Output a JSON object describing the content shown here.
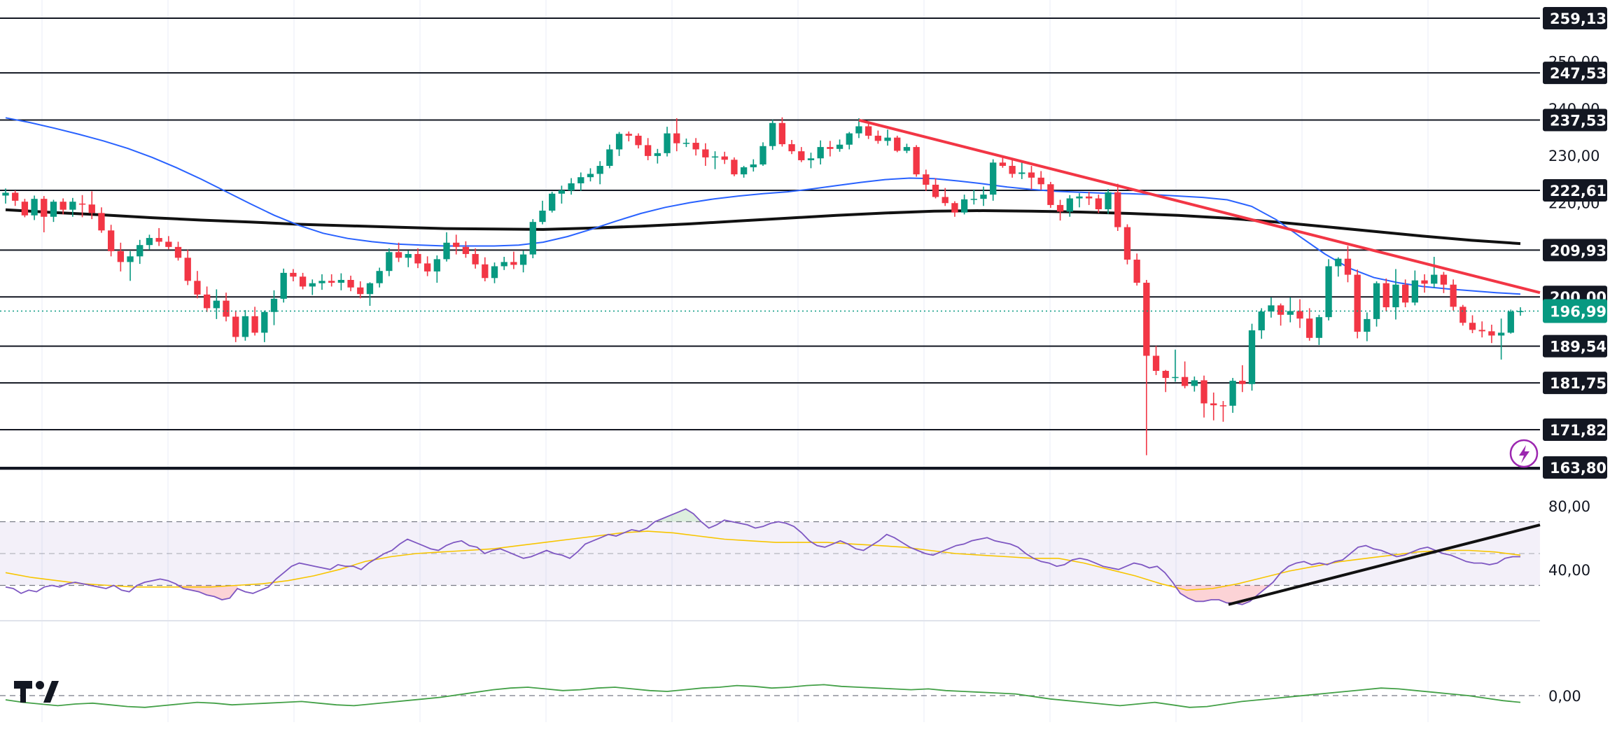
{
  "chart_data": {
    "type": "candlestick",
    "price_axis": {
      "ticks": [
        "250,00",
        "240,00",
        "230,00",
        "220,00",
        "200,00"
      ],
      "current_price": "196,99",
      "current_value": 196.99,
      "ylim": [
        163.8,
        263.0
      ]
    },
    "horizontal_levels": [
      {
        "label": "259,13",
        "value": 259.13
      },
      {
        "label": "247,53",
        "value": 247.53
      },
      {
        "label": "237,53",
        "value": 237.53
      },
      {
        "label": "222,61",
        "value": 222.61
      },
      {
        "label": "209,93",
        "value": 209.93
      },
      {
        "label": "200,00",
        "value": 200.0
      },
      {
        "label": "189,54",
        "value": 189.54
      },
      {
        "label": "181,75",
        "value": 181.75
      },
      {
        "label": "171,82",
        "value": 171.82
      },
      {
        "label": "163,80",
        "value": 163.8
      }
    ],
    "candles": [
      [
        221.5,
        223.0,
        219.8,
        222.1
      ],
      [
        222.1,
        222.6,
        219.3,
        220.4
      ],
      [
        220.2,
        220.8,
        216.9,
        217.3
      ],
      [
        217.3,
        221.5,
        216.3,
        220.8
      ],
      [
        220.8,
        221.4,
        213.7,
        217.0
      ],
      [
        217.0,
        220.6,
        215.9,
        220.2
      ],
      [
        220.2,
        220.9,
        217.5,
        218.5
      ],
      [
        218.5,
        221.0,
        217.0,
        220.2
      ],
      [
        219.8,
        221.6,
        216.9,
        219.6
      ],
      [
        219.6,
        222.4,
        216.5,
        217.8
      ],
      [
        217.8,
        219.0,
        213.6,
        214.1
      ],
      [
        214.1,
        215.3,
        208.6,
        209.7
      ],
      [
        209.7,
        211.5,
        205.4,
        207.4
      ],
      [
        207.4,
        209.7,
        203.4,
        208.6
      ],
      [
        208.6,
        212.1,
        207.0,
        211.0
      ],
      [
        211.0,
        213.2,
        210.0,
        212.5
      ],
      [
        212.5,
        214.6,
        210.8,
        211.7
      ],
      [
        211.7,
        212.9,
        210.1,
        210.6
      ],
      [
        210.6,
        211.7,
        207.7,
        208.3
      ],
      [
        208.3,
        210.0,
        202.5,
        203.4
      ],
      [
        203.4,
        205.5,
        199.7,
        200.5
      ],
      [
        200.5,
        202.2,
        196.8,
        197.6
      ],
      [
        197.6,
        201.6,
        195.3,
        199.2
      ],
      [
        199.2,
        200.9,
        194.8,
        195.8
      ],
      [
        195.8,
        197.1,
        190.4,
        191.5
      ],
      [
        191.5,
        197.2,
        190.7,
        195.9
      ],
      [
        195.9,
        197.9,
        191.8,
        192.4
      ],
      [
        192.4,
        197.1,
        190.4,
        196.8
      ],
      [
        196.8,
        201.4,
        194.0,
        199.6
      ],
      [
        199.6,
        206.0,
        198.8,
        205.1
      ],
      [
        205.1,
        205.9,
        203.3,
        204.3
      ],
      [
        204.3,
        205.1,
        201.6,
        202.2
      ],
      [
        202.2,
        203.7,
        200.4,
        202.9
      ],
      [
        202.9,
        204.8,
        201.5,
        203.4
      ],
      [
        203.4,
        204.8,
        202.2,
        203.0
      ],
      [
        203.0,
        205.0,
        201.4,
        203.6
      ],
      [
        203.6,
        204.5,
        201.2,
        202.0
      ],
      [
        202.0,
        203.3,
        199.7,
        200.6
      ],
      [
        200.6,
        203.1,
        198.1,
        202.9
      ],
      [
        202.9,
        206.2,
        202.0,
        205.5
      ],
      [
        205.5,
        210.3,
        204.4,
        209.5
      ],
      [
        209.5,
        211.5,
        207.4,
        208.3
      ],
      [
        208.3,
        209.8,
        206.3,
        209.1
      ],
      [
        209.1,
        210.3,
        206.1,
        207.1
      ],
      [
        207.1,
        208.6,
        204.4,
        205.4
      ],
      [
        205.4,
        208.8,
        203.0,
        208.0
      ],
      [
        208.0,
        213.7,
        207.5,
        211.5
      ],
      [
        211.5,
        213.2,
        209.0,
        210.6
      ],
      [
        210.6,
        211.8,
        208.3,
        209.1
      ],
      [
        209.1,
        210.3,
        206.0,
        206.9
      ],
      [
        206.9,
        208.4,
        203.3,
        204.0
      ],
      [
        204.0,
        207.3,
        202.9,
        206.5
      ],
      [
        206.5,
        208.5,
        205.7,
        207.4
      ],
      [
        207.4,
        209.6,
        205.9,
        206.8
      ],
      [
        206.8,
        209.8,
        205.2,
        209.0
      ],
      [
        209.0,
        216.5,
        208.2,
        215.9
      ],
      [
        215.9,
        220.4,
        215.4,
        218.3
      ],
      [
        218.3,
        222.3,
        217.9,
        221.9
      ],
      [
        221.9,
        223.6,
        219.8,
        222.6
      ],
      [
        222.6,
        225.2,
        221.7,
        224.1
      ],
      [
        224.1,
        226.4,
        222.5,
        225.4
      ],
      [
        225.4,
        227.3,
        224.5,
        226.1
      ],
      [
        226.1,
        228.8,
        223.9,
        227.8
      ],
      [
        227.8,
        232.3,
        227.3,
        231.3
      ],
      [
        231.3,
        235.0,
        229.9,
        234.6
      ],
      [
        234.6,
        235.1,
        233.0,
        234.2
      ],
      [
        234.2,
        234.7,
        231.5,
        232.2
      ],
      [
        232.2,
        233.7,
        229.0,
        229.9
      ],
      [
        229.9,
        231.4,
        228.3,
        230.5
      ],
      [
        230.5,
        236.1,
        229.8,
        234.7
      ],
      [
        234.7,
        237.9,
        230.9,
        232.6
      ],
      [
        232.6,
        233.6,
        231.8,
        232.7
      ],
      [
        232.7,
        233.7,
        230.0,
        231.3
      ],
      [
        231.3,
        232.6,
        227.8,
        229.6
      ],
      [
        229.6,
        230.9,
        227.1,
        229.8
      ],
      [
        229.8,
        230.8,
        228.2,
        229.1
      ],
      [
        229.1,
        229.6,
        225.6,
        226.0
      ],
      [
        226.0,
        227.8,
        225.3,
        227.5
      ],
      [
        227.5,
        229.2,
        226.6,
        228.1
      ],
      [
        228.1,
        232.8,
        227.8,
        232.0
      ],
      [
        232.0,
        237.6,
        231.2,
        236.9
      ],
      [
        236.9,
        238.1,
        231.9,
        232.4
      ],
      [
        232.4,
        233.3,
        230.3,
        230.9
      ],
      [
        230.9,
        231.8,
        228.6,
        229.0
      ],
      [
        229.0,
        230.6,
        227.3,
        229.4
      ],
      [
        229.4,
        233.2,
        228.1,
        231.8
      ],
      [
        231.8,
        233.1,
        229.8,
        231.4
      ],
      [
        231.4,
        233.4,
        230.8,
        232.3
      ],
      [
        232.3,
        235.0,
        231.3,
        234.7
      ],
      [
        234.7,
        237.9,
        233.7,
        236.2
      ],
      [
        236.2,
        237.0,
        233.5,
        234.2
      ],
      [
        234.2,
        235.3,
        232.5,
        233.1
      ],
      [
        233.1,
        235.5,
        232.1,
        233.8
      ],
      [
        233.8,
        234.2,
        230.7,
        231.0
      ],
      [
        231.0,
        232.5,
        230.5,
        231.8
      ],
      [
        231.8,
        232.2,
        225.5,
        226.0
      ],
      [
        226.0,
        227.0,
        222.5,
        223.8
      ],
      [
        223.8,
        225.2,
        220.9,
        221.2
      ],
      [
        221.2,
        223.1,
        219.3,
        219.9
      ],
      [
        219.9,
        220.3,
        217.0,
        217.9
      ],
      [
        217.9,
        221.7,
        217.5,
        220.7
      ],
      [
        220.7,
        222.8,
        219.6,
        220.8
      ],
      [
        220.8,
        223.4,
        219.3,
        221.7
      ],
      [
        221.7,
        229.2,
        220.4,
        228.5
      ],
      [
        228.5,
        229.9,
        227.4,
        227.8
      ],
      [
        227.8,
        229.2,
        225.3,
        226.1
      ],
      [
        226.1,
        228.9,
        225.0,
        226.4
      ],
      [
        226.4,
        227.8,
        222.8,
        225.3
      ],
      [
        225.3,
        226.7,
        222.7,
        223.9
      ],
      [
        223.9,
        224.4,
        218.9,
        219.5
      ],
      [
        219.5,
        220.6,
        216.2,
        218.1
      ],
      [
        218.1,
        221.6,
        217.0,
        220.9
      ],
      [
        220.9,
        222.0,
        219.0,
        221.3
      ],
      [
        221.3,
        222.3,
        219.5,
        220.9
      ],
      [
        220.9,
        221.7,
        217.8,
        218.6
      ],
      [
        218.6,
        222.9,
        217.6,
        222.2
      ],
      [
        222.2,
        224.0,
        214.0,
        214.8
      ],
      [
        214.8,
        215.4,
        206.9,
        207.9
      ],
      [
        207.9,
        209.2,
        202.4,
        203.0
      ],
      [
        203.0,
        203.6,
        166.4,
        187.5
      ],
      [
        187.5,
        189.6,
        183.4,
        184.3
      ],
      [
        184.3,
        184.5,
        179.8,
        182.8
      ],
      [
        182.8,
        188.8,
        182.0,
        183.0
      ],
      [
        183.0,
        186.3,
        180.6,
        181.1
      ],
      [
        181.1,
        183.1,
        179.9,
        182.3
      ],
      [
        182.3,
        183.3,
        174.4,
        177.4
      ],
      [
        177.4,
        179.7,
        173.8,
        177.0
      ],
      [
        177.0,
        177.9,
        173.5,
        176.9
      ],
      [
        176.9,
        182.8,
        175.4,
        182.2
      ],
      [
        182.2,
        185.5,
        179.8,
        181.5
      ],
      [
        181.5,
        194.3,
        180.1,
        192.9
      ],
      [
        192.9,
        197.6,
        191.1,
        196.9
      ],
      [
        196.9,
        199.9,
        195.6,
        198.2
      ],
      [
        198.2,
        198.6,
        193.9,
        196.2
      ],
      [
        196.2,
        199.9,
        194.6,
        197.0
      ],
      [
        197.0,
        199.5,
        193.4,
        195.4
      ],
      [
        195.4,
        197.6,
        190.7,
        191.3
      ],
      [
        191.3,
        196.2,
        189.8,
        195.7
      ],
      [
        195.7,
        208.0,
        195.0,
        206.5
      ],
      [
        206.5,
        208.4,
        204.3,
        208.1
      ],
      [
        208.1,
        210.8,
        203.1,
        204.7
      ],
      [
        204.7,
        205.8,
        191.2,
        192.6
      ],
      [
        192.6,
        196.7,
        190.6,
        195.3
      ],
      [
        195.3,
        203.3,
        193.7,
        202.9
      ],
      [
        202.9,
        203.9,
        196.9,
        197.8
      ],
      [
        197.8,
        205.9,
        195.2,
        202.6
      ],
      [
        202.6,
        203.7,
        197.8,
        198.8
      ],
      [
        198.8,
        205.6,
        198.2,
        203.5
      ],
      [
        203.5,
        204.8,
        200.9,
        202.8
      ],
      [
        202.8,
        208.5,
        201.9,
        204.7
      ],
      [
        204.7,
        205.3,
        200.8,
        202.6
      ],
      [
        202.6,
        203.7,
        197.1,
        197.9
      ],
      [
        197.9,
        198.3,
        193.9,
        194.5
      ],
      [
        194.5,
        196.1,
        192.3,
        193.0
      ],
      [
        193.0,
        194.8,
        191.4,
        192.7
      ],
      [
        192.7,
        194.1,
        190.2,
        191.8
      ],
      [
        191.8,
        195.4,
        186.7,
        192.4
      ],
      [
        192.4,
        197.3,
        192.2,
        196.9
      ],
      [
        196.9,
        197.8,
        196.0,
        196.99
      ]
    ],
    "ma_black": [
      218.5,
      217.9,
      217.4,
      216.8,
      216.3,
      215.9,
      215.4,
      215.1,
      214.8,
      214.5,
      214.4,
      214.3,
      214.6,
      215.0,
      215.5,
      216.1,
      216.7,
      217.3,
      217.8,
      218.2,
      218.3,
      218.2,
      218.0,
      217.7,
      217.3,
      216.7,
      215.9,
      214.9,
      213.9,
      212.9,
      212.0,
      211.3
    ],
    "ma_blue": [
      238.0,
      237.0,
      235.8,
      234.5,
      233.1,
      231.5,
      229.6,
      227.4,
      225.0,
      222.4,
      219.8,
      217.3,
      215.2,
      213.5,
      212.4,
      211.7,
      211.2,
      211.0,
      210.8,
      210.8,
      210.8,
      211.0,
      211.6,
      212.8,
      214.4,
      216.1,
      217.7,
      219.0,
      220.0,
      220.8,
      221.4,
      221.9,
      222.3,
      222.9,
      223.6,
      224.3,
      224.9,
      225.2,
      225.1,
      224.6,
      224.0,
      223.3,
      222.8,
      222.4,
      222.2,
      222.0,
      221.9,
      221.7,
      221.4,
      221.1,
      220.6,
      219.2,
      216.4,
      212.7,
      209.1,
      206.1,
      204.1,
      203.0,
      202.2,
      201.7,
      201.3,
      200.9,
      200.6
    ],
    "trendline_red": [
      237.5,
      200.9
    ],
    "rsi": {
      "ticks": [
        "80,00",
        "40,00"
      ],
      "upper": 70,
      "lower": 30,
      "ylim": [
        10,
        90
      ],
      "values": [
        29,
        28,
        25,
        27,
        26,
        29,
        30,
        29,
        31,
        32,
        31,
        30,
        29,
        28,
        30,
        27,
        26,
        30,
        32,
        33,
        34,
        33,
        31,
        28,
        27,
        26,
        24,
        23,
        21,
        22,
        28,
        26,
        25,
        27,
        29,
        34,
        38,
        42,
        44,
        43,
        42,
        41,
        40,
        43,
        42,
        42,
        40,
        44,
        47,
        50,
        52,
        56,
        59,
        57,
        55,
        53,
        52,
        55,
        57,
        58,
        55,
        54,
        50,
        52,
        53,
        51,
        49,
        47,
        48,
        50,
        52,
        50,
        49,
        47,
        51,
        56,
        58,
        60,
        62,
        61,
        63,
        65,
        64,
        66,
        70,
        72,
        74,
        76,
        78,
        75,
        70,
        66,
        68,
        71,
        70,
        69,
        68,
        66,
        67,
        69,
        70,
        69,
        67,
        63,
        58,
        55,
        54,
        56,
        58,
        56,
        53,
        52,
        55,
        58,
        62,
        60,
        57,
        54,
        52,
        50,
        49,
        51,
        53,
        55,
        56,
        58,
        59,
        60,
        58,
        57,
        56,
        54,
        50,
        47,
        45,
        44,
        42,
        43,
        46,
        47,
        46,
        44,
        42,
        41,
        40,
        42,
        44,
        43,
        41,
        42,
        38,
        32,
        25,
        22,
        20,
        20,
        21,
        21,
        19,
        19,
        18,
        20,
        24,
        28,
        32,
        38,
        42,
        44,
        45,
        43,
        44,
        43,
        45,
        46,
        50,
        54,
        55,
        53,
        52,
        50,
        48,
        49,
        51,
        53,
        54,
        52,
        50,
        49,
        47,
        45,
        44,
        44,
        43,
        44,
        47,
        48,
        48
      ]
    },
    "rsi_ma": [
      38,
      35,
      33,
      31,
      30,
      29,
      29,
      29,
      29,
      30,
      31,
      33,
      36,
      40,
      45,
      48,
      50,
      51,
      52,
      53,
      55,
      57,
      59,
      61,
      63,
      64,
      63,
      61,
      59,
      58,
      57,
      57,
      57,
      56,
      55,
      54,
      52,
      50,
      49,
      48,
      47,
      47,
      44,
      40,
      36,
      31,
      27,
      28,
      31,
      35,
      39,
      42,
      45,
      47,
      49,
      51,
      52,
      52,
      51,
      49
    ],
    "rsi_trendline": [
      18,
      68
    ],
    "oscillator": {
      "ticks": [
        "0,00"
      ],
      "values": [
        -0.5,
        -0.8,
        -1.0,
        -1.2,
        -1.0,
        -0.9,
        -1.1,
        -1.3,
        -1.4,
        -1.2,
        -1.0,
        -0.8,
        -0.9,
        -1.1,
        -1.0,
        -0.9,
        -0.8,
        -0.7,
        -0.9,
        -1.1,
        -1.2,
        -1.0,
        -0.8,
        -0.6,
        -0.4,
        -0.2,
        0.1,
        0.4,
        0.7,
        0.9,
        1.0,
        0.8,
        0.6,
        0.7,
        0.9,
        1.0,
        0.8,
        0.6,
        0.5,
        0.7,
        0.9,
        1.0,
        1.2,
        1.1,
        0.9,
        1.0,
        1.2,
        1.3,
        1.1,
        1.0,
        0.9,
        0.8,
        0.7,
        0.8,
        0.6,
        0.5,
        0.4,
        0.3,
        0.2,
        -0.1,
        -0.4,
        -0.6,
        -0.8,
        -1.0,
        -1.2,
        -1.0,
        -0.8,
        -1.1,
        -1.4,
        -1.3,
        -1.0,
        -0.7,
        -0.5,
        -0.3,
        -0.1,
        0.1,
        0.3,
        0.5,
        0.7,
        0.9,
        0.8,
        0.6,
        0.4,
        0.2,
        0.0,
        -0.3,
        -0.6,
        -0.8
      ]
    }
  },
  "icons": {
    "brand_logo": "tradingview-logo",
    "flash": "lightning-icon"
  },
  "colors": {
    "up": "#089981",
    "down": "#f23645",
    "ma_blue": "#2962ff",
    "ma_black": "#111111",
    "trend_red": "#f23645",
    "rsi_line": "#7e57c2",
    "rsi_ma": "#f7c500",
    "osc_line": "#43a047",
    "current_price_bg": "#089981"
  }
}
